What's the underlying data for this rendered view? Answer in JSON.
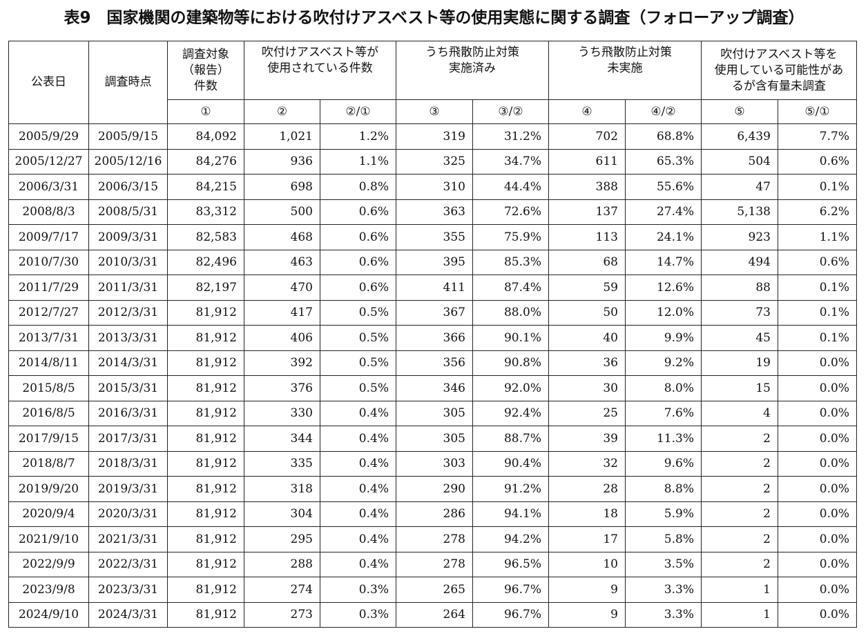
{
  "title": "表9　国家機関の建築物等における吹付けアスベスト等の使用実態に関する調査（フォローアップ調査）",
  "headers": {
    "published": "公表日",
    "survey_date": "調査時点",
    "target_count": [
      "調査対象",
      "（報告）",
      "件数"
    ],
    "sprayed": [
      "吹付けアスベスト等が",
      "使用されている件数"
    ],
    "measured": [
      "うち飛散防止対策",
      "実施済み"
    ],
    "unmeasured": [
      "うち飛散防止対策",
      "未実施"
    ],
    "possible": [
      "吹付けアスベスト等を",
      "使用している可能性があ",
      "るが含有量未調査"
    ]
  },
  "subheaders": [
    "①",
    "②",
    "②/①",
    "③",
    "③/②",
    "④",
    "④/②",
    "⑤",
    "⑤/①"
  ],
  "rows": [
    [
      "2005/9/29",
      "2005/9/15",
      "84,092",
      "1,021",
      "1.2%",
      "319",
      "31.2%",
      "702",
      "68.8%",
      "6,439",
      "7.7%"
    ],
    [
      "2005/12/27",
      "2005/12/16",
      "84,276",
      "936",
      "1.1%",
      "325",
      "34.7%",
      "611",
      "65.3%",
      "504",
      "0.6%"
    ],
    [
      "2006/3/31",
      "2006/3/15",
      "84,215",
      "698",
      "0.8%",
      "310",
      "44.4%",
      "388",
      "55.6%",
      "47",
      "0.1%"
    ],
    [
      "2008/8/3",
      "2008/5/31",
      "83,312",
      "500",
      "0.6%",
      "363",
      "72.6%",
      "137",
      "27.4%",
      "5,138",
      "6.2%"
    ],
    [
      "2009/7/17",
      "2009/3/31",
      "82,583",
      "468",
      "0.6%",
      "355",
      "75.9%",
      "113",
      "24.1%",
      "923",
      "1.1%"
    ],
    [
      "2010/7/30",
      "2010/3/31",
      "82,496",
      "463",
      "0.6%",
      "395",
      "85.3%",
      "68",
      "14.7%",
      "494",
      "0.6%"
    ],
    [
      "2011/7/29",
      "2011/3/31",
      "82,197",
      "470",
      "0.6%",
      "411",
      "87.4%",
      "59",
      "12.6%",
      "88",
      "0.1%"
    ],
    [
      "2012/7/27",
      "2012/3/31",
      "81,912",
      "417",
      "0.5%",
      "367",
      "88.0%",
      "50",
      "12.0%",
      "73",
      "0.1%"
    ],
    [
      "2013/7/31",
      "2013/3/31",
      "81,912",
      "406",
      "0.5%",
      "366",
      "90.1%",
      "40",
      "9.9%",
      "45",
      "0.1%"
    ],
    [
      "2014/8/11",
      "2014/3/31",
      "81,912",
      "392",
      "0.5%",
      "356",
      "90.8%",
      "36",
      "9.2%",
      "19",
      "0.0%"
    ],
    [
      "2015/8/5",
      "2015/3/31",
      "81,912",
      "376",
      "0.5%",
      "346",
      "92.0%",
      "30",
      "8.0%",
      "15",
      "0.0%"
    ],
    [
      "2016/8/5",
      "2016/3/31",
      "81,912",
      "330",
      "0.4%",
      "305",
      "92.4%",
      "25",
      "7.6%",
      "4",
      "0.0%"
    ],
    [
      "2017/9/15",
      "2017/3/31",
      "81,912",
      "344",
      "0.4%",
      "305",
      "88.7%",
      "39",
      "11.3%",
      "2",
      "0.0%"
    ],
    [
      "2018/8/7",
      "2018/3/31",
      "81,912",
      "335",
      "0.4%",
      "303",
      "90.4%",
      "32",
      "9.6%",
      "2",
      "0.0%"
    ],
    [
      "2019/9/20",
      "2019/3/31",
      "81,912",
      "318",
      "0.4%",
      "290",
      "91.2%",
      "28",
      "8.8%",
      "2",
      "0.0%"
    ],
    [
      "2020/9/4",
      "2020/3/31",
      "81,912",
      "304",
      "0.4%",
      "286",
      "94.1%",
      "18",
      "5.9%",
      "2",
      "0.0%"
    ],
    [
      "2021/9/10",
      "2021/3/31",
      "81,912",
      "295",
      "0.4%",
      "278",
      "94.2%",
      "17",
      "5.8%",
      "2",
      "0.0%"
    ],
    [
      "2022/9/9",
      "2022/3/31",
      "81,912",
      "288",
      "0.4%",
      "278",
      "96.5%",
      "10",
      "3.5%",
      "2",
      "0.0%"
    ],
    [
      "2023/9/8",
      "2023/3/31",
      "81,912",
      "274",
      "0.3%",
      "265",
      "96.7%",
      "9",
      "3.3%",
      "1",
      "0.0%"
    ],
    [
      "2024/9/10",
      "2024/3/31",
      "81,912",
      "273",
      "0.3%",
      "264",
      "96.7%",
      "9",
      "3.3%",
      "1",
      "0.0%"
    ]
  ]
}
